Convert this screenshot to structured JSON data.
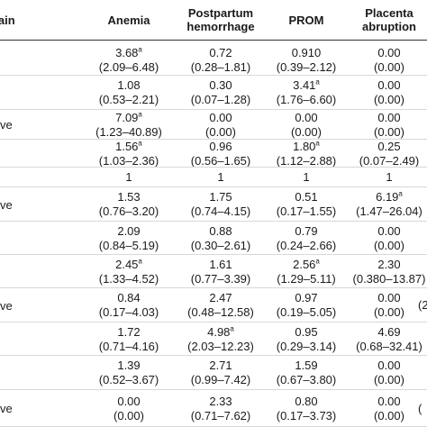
{
  "header": {
    "first": "t gain",
    "anemia": "Anemia",
    "pph_line1": "Postpartum",
    "pph_line2": "hemorrhage",
    "prom": "PROM",
    "placenta_line1": "Placenta",
    "placenta_line2": "abruption"
  },
  "rows": [
    {
      "label": "",
      "cells": [
        {
          "est": "3.68",
          "sup": "a",
          "ci": "(2.09–6.48)"
        },
        {
          "est": "0.72",
          "sup": "",
          "ci": "(0.28–1.81)"
        },
        {
          "est": "0.910",
          "sup": "",
          "ci": "(0.39–2.12)"
        },
        {
          "est": "0.00",
          "sup": "",
          "ci": "(0.00)"
        }
      ],
      "edge": [
        "",
        ""
      ]
    },
    {
      "label": "",
      "cells": [
        {
          "est": "1.08",
          "sup": "",
          "ci": "(0.53–2.21)"
        },
        {
          "est": "0.30",
          "sup": "",
          "ci": "(0.07–1.28)"
        },
        {
          "est": "3.41",
          "sup": "a",
          "ci": "(1.76–6.60)"
        },
        {
          "est": "0.00",
          "sup": "",
          "ci": "(0.00)"
        }
      ],
      "edge": [
        "",
        ""
      ]
    },
    {
      "label": "ve",
      "cells": [
        {
          "est": "7.09",
          "sup": "a",
          "ci": "(1.23–40.89)"
        },
        {
          "est": "0.00",
          "sup": "",
          "ci": "(0.00)"
        },
        {
          "est": "0.00",
          "sup": "",
          "ci": "(0.00)"
        },
        {
          "est": "0.00",
          "sup": "",
          "ci": "(0.00)"
        }
      ],
      "edge": [
        "",
        ""
      ]
    },
    {
      "label": "",
      "cells": [
        {
          "est": "1.56",
          "sup": "a",
          "ci": "(1.03–2.36)"
        },
        {
          "est": "0.96",
          "sup": "",
          "ci": "(0.56–1.65)"
        },
        {
          "est": "1.80",
          "sup": "a",
          "ci": "(1.12–2.88)"
        },
        {
          "est": "0.25",
          "sup": "",
          "ci": "(0.07–2.49)"
        }
      ],
      "edge": [
        "",
        ""
      ]
    },
    {
      "label": "",
      "single": true,
      "cells": [
        {
          "est": "1",
          "sup": "",
          "ci": ""
        },
        {
          "est": "1",
          "sup": "",
          "ci": ""
        },
        {
          "est": "1",
          "sup": "",
          "ci": ""
        },
        {
          "est": "1",
          "sup": "",
          "ci": ""
        }
      ],
      "edge": [
        "",
        ""
      ]
    },
    {
      "label": "ve",
      "cells": [
        {
          "est": "1.53",
          "sup": "",
          "ci": "(0.76–3.20)"
        },
        {
          "est": "1.75",
          "sup": "",
          "ci": "(0.74–4.15)"
        },
        {
          "est": "0.51",
          "sup": "",
          "ci": "(0.17–1.55)"
        },
        {
          "est": "6.19",
          "sup": "a",
          "ci": "(1.47–26.04)"
        }
      ],
      "edge": [
        "",
        ""
      ]
    },
    {
      "label": "",
      "cells": [
        {
          "est": "2.09",
          "sup": "",
          "ci": "(0.84–5.19)"
        },
        {
          "est": "0.88",
          "sup": "",
          "ci": "(0.30–2.61)"
        },
        {
          "est": "0.79",
          "sup": "",
          "ci": "(0.24–2.66)"
        },
        {
          "est": "0.00",
          "sup": "",
          "ci": "(0.00)"
        }
      ],
      "edge": [
        "",
        ""
      ]
    },
    {
      "label": "",
      "cells": [
        {
          "est": "2.45",
          "sup": "a",
          "ci": "(1.33–4.52)"
        },
        {
          "est": "1.61",
          "sup": "",
          "ci": "(0.77–3.39)"
        },
        {
          "est": "2.56",
          "sup": "a",
          "ci": "(1.29–5.11)"
        },
        {
          "est": "2.30",
          "sup": "",
          "ci": "(0.380–13.87)"
        }
      ],
      "edge": [
        "",
        ""
      ]
    },
    {
      "label": "ve",
      "cells": [
        {
          "est": "0.84",
          "sup": "",
          "ci": "(0.17–4.03)"
        },
        {
          "est": "2.47",
          "sup": "",
          "ci": "(0.48–12.58)"
        },
        {
          "est": "0.97",
          "sup": "",
          "ci": "(0.19–5.05)"
        },
        {
          "est": "0.00",
          "sup": "",
          "ci": "(0.00)"
        }
      ],
      "edge": [
        "",
        "(2"
      ]
    },
    {
      "label": "",
      "cells": [
        {
          "est": "1.72",
          "sup": "",
          "ci": "(0.71–4.16)"
        },
        {
          "est": "4.98",
          "sup": "a",
          "ci": "(2.03–12.23)"
        },
        {
          "est": "0.95",
          "sup": "",
          "ci": "(0.29–3.14)"
        },
        {
          "est": "4.69",
          "sup": "",
          "ci": "(0.68–32.41)"
        }
      ],
      "edge": [
        "",
        ""
      ]
    },
    {
      "label": "",
      "cells": [
        {
          "est": "1.39",
          "sup": "",
          "ci": "(0.52–3.67)"
        },
        {
          "est": "2.71",
          "sup": "",
          "ci": "(0.99–7.42)"
        },
        {
          "est": "1.59",
          "sup": "",
          "ci": "(0.67–3.80)"
        },
        {
          "est": "0.00",
          "sup": "",
          "ci": "(0.00)"
        }
      ],
      "edge": [
        "",
        ""
      ]
    },
    {
      "label": "ve",
      "cells": [
        {
          "est": "0.00",
          "sup": "",
          "ci": "(0.00)"
        },
        {
          "est": "2.33",
          "sup": "",
          "ci": "(0.71–7.62)"
        },
        {
          "est": "0.80",
          "sup": "",
          "ci": "(0.17–3.73)"
        },
        {
          "est": "0.00",
          "sup": "",
          "ci": "(0.00)"
        }
      ],
      "edge": [
        "",
        "("
      ]
    }
  ]
}
